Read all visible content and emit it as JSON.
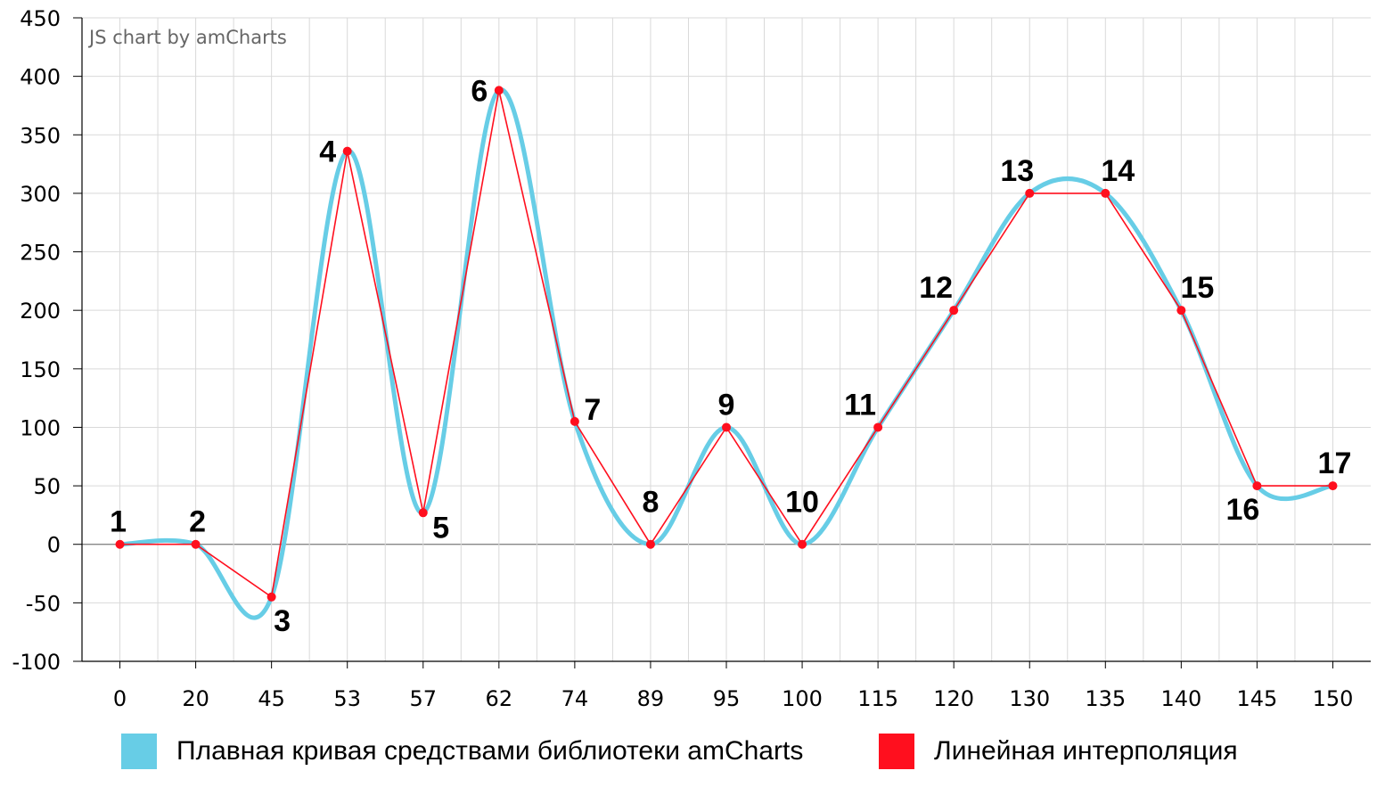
{
  "credit": "JS chart by amCharts",
  "legend": [
    {
      "label": "Плавная кривая средствами библиотеки amCharts",
      "color": "#67cde6"
    },
    {
      "label": "Линейная интерполяция",
      "color": "#ff0f1e"
    }
  ],
  "chart_data": {
    "type": "line",
    "title": "",
    "xlabel": "",
    "ylabel": "",
    "ylim": [
      -100,
      450
    ],
    "yticks": [
      -100,
      -50,
      0,
      50,
      100,
      150,
      200,
      250,
      300,
      350,
      400,
      450
    ],
    "categories": [
      "0",
      "20",
      "45",
      "53",
      "57",
      "62",
      "74",
      "89",
      "95",
      "100",
      "115",
      "120",
      "130",
      "135",
      "140",
      "145",
      "150"
    ],
    "point_labels": [
      "1",
      "2",
      "3",
      "4",
      "5",
      "6",
      "7",
      "8",
      "9",
      "10",
      "11",
      "12",
      "13",
      "14",
      "15",
      "16",
      "17"
    ],
    "series": [
      {
        "name": "Плавная кривая средствами библиотеки amCharts",
        "type": "smoothed-line",
        "color": "#67cde6",
        "values": [
          0,
          0,
          -45,
          336,
          27,
          388,
          105,
          0,
          100,
          0,
          100,
          200,
          300,
          300,
          200,
          50,
          50
        ]
      },
      {
        "name": "Линейная интерполяция",
        "type": "line",
        "color": "#ff0f1e",
        "values": [
          0,
          0,
          -45,
          336,
          27,
          388,
          105,
          0,
          100,
          0,
          100,
          200,
          300,
          300,
          200,
          50,
          50
        ]
      }
    ],
    "grid": true,
    "legend_position": "bottom"
  }
}
